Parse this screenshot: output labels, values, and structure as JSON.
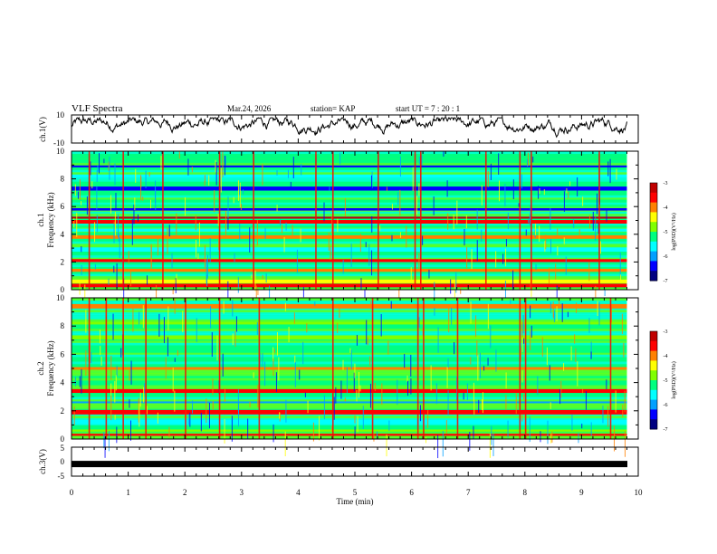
{
  "header": {
    "title": "VLF Spectra",
    "date": "Mar.24, 2026",
    "station": "station= KAP",
    "start_ut": "start  UT  =   7 : 20 : 1"
  },
  "colors": {
    "scale": [
      "#000080",
      "#0000ff",
      "#00a0ff",
      "#00ffff",
      "#00ff80",
      "#80ff00",
      "#ffff00",
      "#ff8000",
      "#ff0000",
      "#c00000"
    ]
  },
  "chart_data": [
    {
      "type": "line",
      "name": "ch1-waveform",
      "ylabel": "ch.1(V)",
      "ylim": [
        -10,
        10
      ],
      "yticks": [
        "10",
        "-10"
      ],
      "xlim": [
        0,
        10
      ],
      "note": "noisy waveform, roughly between -6 and 8 V"
    },
    {
      "type": "heatmap",
      "name": "ch1-spectrogram",
      "ylabel": "ch.1\nFrequency (kHz)",
      "ylim": [
        0,
        10
      ],
      "yticks": [
        "0",
        "2",
        "4",
        "6",
        "8",
        "10"
      ],
      "xlim": [
        0,
        9.8
      ],
      "colorbar": {
        "label": "log(PSD)(V²/Hz)",
        "range": [
          -7,
          -3
        ],
        "ticks": [
          "-3",
          "-4",
          "-5",
          "-6",
          "-7"
        ]
      },
      "bands_khz": [
        {
          "f": 0.3,
          "level": 8
        },
        {
          "f": 0.6,
          "level": 6
        },
        {
          "f": 1.4,
          "level": 7
        },
        {
          "f": 2.1,
          "level": 8
        },
        {
          "f": 2.9,
          "level": 3
        },
        {
          "f": 3.8,
          "level": 7
        },
        {
          "f": 4.3,
          "level": 3
        },
        {
          "f": 4.9,
          "level": 8
        },
        {
          "f": 5.2,
          "level": 9
        },
        {
          "f": 5.8,
          "level": 1
        },
        {
          "f": 6.4,
          "level": 4
        },
        {
          "f": 7.3,
          "level": 1
        },
        {
          "f": 8.2,
          "level": 3
        },
        {
          "f": 8.9,
          "level": 1
        },
        {
          "f": 9.6,
          "level": 4
        }
      ],
      "spikes_min": [
        0.3,
        0.9,
        1.6,
        2.6,
        3.2,
        4.3,
        4.6,
        5.4,
        6.05,
        6.15,
        7.3,
        7.9,
        8.1,
        9.3
      ]
    },
    {
      "type": "heatmap",
      "name": "ch2-spectrogram",
      "ylabel": "ch.2\nFrequency (kHz)",
      "ylim": [
        0,
        10
      ],
      "yticks": [
        "0",
        "2",
        "4",
        "6",
        "8",
        "10"
      ],
      "xlim": [
        0,
        9.8
      ],
      "colorbar": {
        "label": "log(PSD)(V²/Hz)",
        "range": [
          -7,
          -3
        ],
        "ticks": [
          "-3",
          "-4",
          "-5",
          "-6",
          "-7"
        ]
      },
      "bands_khz": [
        {
          "f": 0.3,
          "level": 8
        },
        {
          "f": 0.6,
          "level": 5
        },
        {
          "f": 1.2,
          "level": 3
        },
        {
          "f": 1.9,
          "level": 8
        },
        {
          "f": 2.6,
          "level": 2
        },
        {
          "f": 3.4,
          "level": 8
        },
        {
          "f": 4.0,
          "level": 4
        },
        {
          "f": 5.0,
          "level": 7
        },
        {
          "f": 6.2,
          "level": 4
        },
        {
          "f": 7.2,
          "level": 5
        },
        {
          "f": 8.2,
          "level": 5
        },
        {
          "f": 9.4,
          "level": 7
        }
      ],
      "spikes_min": [
        0.3,
        0.6,
        0.9,
        1.3,
        2.0,
        2.6,
        3.3,
        4.6,
        5.3,
        6.1,
        6.2,
        6.8,
        7.9,
        8.0,
        9.5
      ]
    },
    {
      "type": "line",
      "name": "ch3-waveform",
      "ylabel": "ch.3(V)",
      "ylim": [
        -5,
        5
      ],
      "yticks": [
        "5",
        "0",
        "-5"
      ],
      "xlim": [
        0,
        10
      ],
      "level_v": -0.8,
      "xlabel": "Time  (min)",
      "xticks": [
        "0",
        "1",
        "2",
        "3",
        "4",
        "5",
        "6",
        "7",
        "8",
        "9",
        "10"
      ]
    }
  ]
}
